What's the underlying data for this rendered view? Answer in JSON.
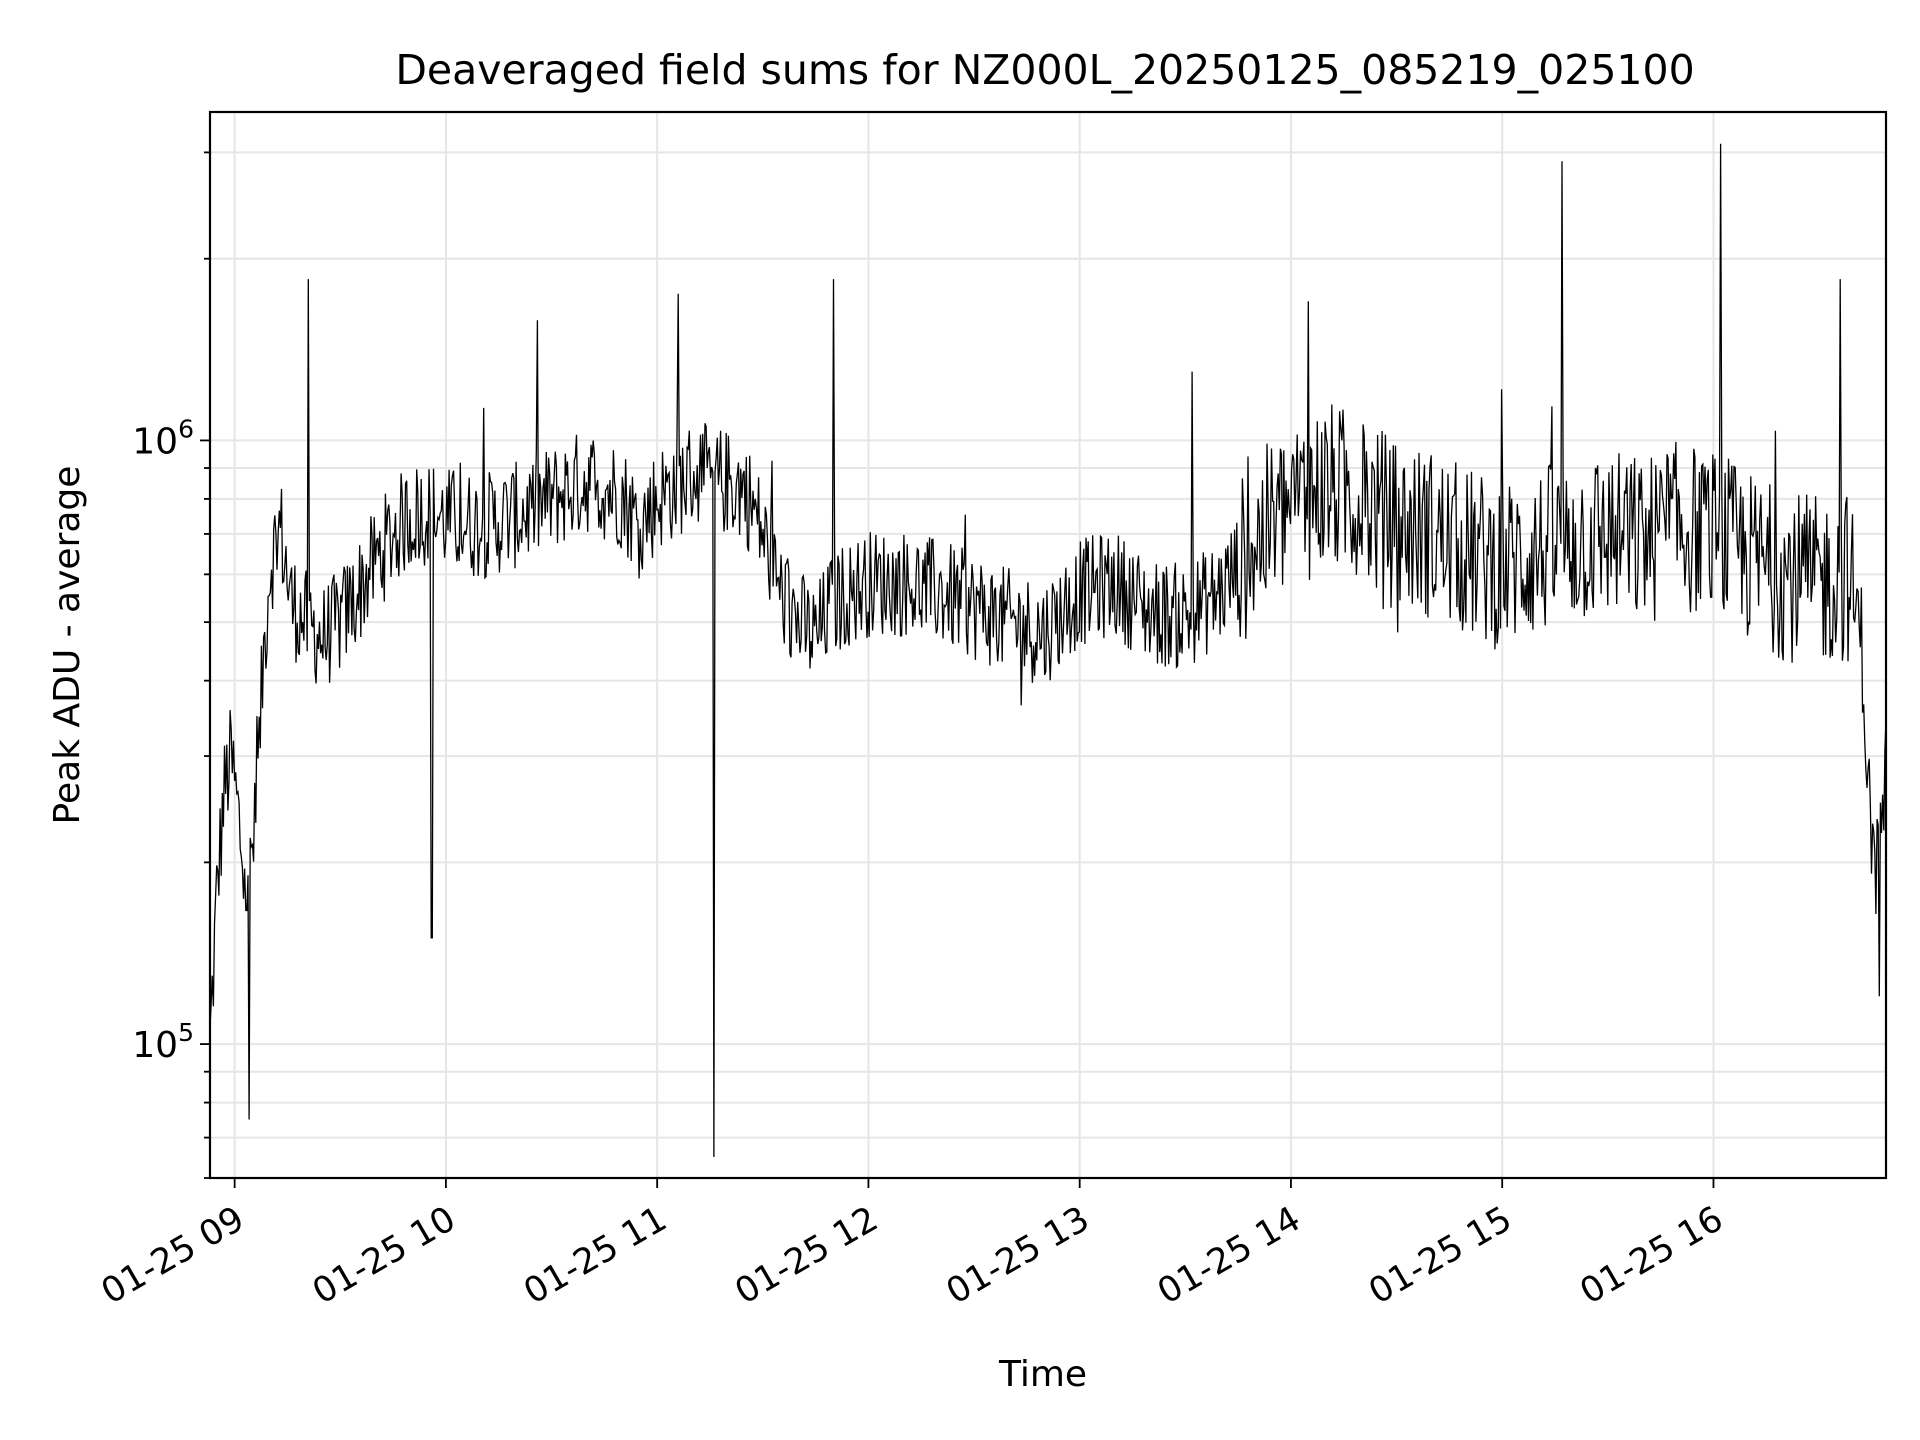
{
  "chart_data": {
    "type": "line",
    "title": "Deaveraged field sums for NZ000L_20250125_085219_025100",
    "xlabel": "Time",
    "ylabel": "Peak ADU - average",
    "yscale": "log",
    "grid": true,
    "ylim": [
      60000,
      3500000
    ],
    "xlim": [
      "2025-01-25 08:53",
      "2025-01-25 16:49"
    ],
    "x_ticks": [
      "01-25 09",
      "01-25 10",
      "01-25 11",
      "01-25 12",
      "01-25 13",
      "01-25 14",
      "01-25 15",
      "01-25 16"
    ],
    "x_tick_times": [
      "2025-01-25 09:00",
      "2025-01-25 10:00",
      "2025-01-25 11:00",
      "2025-01-25 12:00",
      "2025-01-25 13:00",
      "2025-01-25 14:00",
      "2025-01-25 15:00",
      "2025-01-25 16:00"
    ],
    "y_ticks": [
      {
        "base": "10",
        "exp": "5",
        "value": 100000
      },
      {
        "base": "10",
        "exp": "6",
        "value": 1000000
      }
    ],
    "line_color": "#000000",
    "series": [
      {
        "points": [
          [
            "2025-01-25 08:53",
            100000
          ],
          [
            "2025-01-25 08:55",
            180000
          ],
          [
            "2025-01-25 08:57",
            260000
          ],
          [
            "2025-01-25 08:59",
            300000
          ],
          [
            "2025-01-25 09:01",
            240000
          ],
          [
            "2025-01-25 09:03",
            180000
          ],
          [
            "2025-01-25 09:06",
            230000
          ],
          [
            "2025-01-25 09:08",
            420000
          ],
          [
            "2025-01-25 09:10",
            620000
          ],
          [
            "2025-01-25 09:13",
            720000
          ],
          [
            "2025-01-25 09:16",
            540000
          ],
          [
            "2025-01-25 09:20",
            500000
          ],
          [
            "2025-01-25 09:25",
            470000
          ],
          [
            "2025-01-25 09:30",
            500000
          ],
          [
            "2025-01-25 09:35",
            560000
          ],
          [
            "2025-01-25 09:40",
            630000
          ],
          [
            "2025-01-25 09:45",
            700000
          ],
          [
            "2025-01-25 09:50",
            750000
          ],
          [
            "2025-01-25 09:55",
            760000
          ],
          [
            "2025-01-25 10:00",
            740000
          ],
          [
            "2025-01-25 10:10",
            720000
          ],
          [
            "2025-01-25 10:20",
            750000
          ],
          [
            "2025-01-25 10:30",
            800000
          ],
          [
            "2025-01-25 10:40",
            860000
          ],
          [
            "2025-01-25 10:50",
            810000
          ],
          [
            "2025-01-25 10:55",
            720000
          ],
          [
            "2025-01-25 11:00",
            800000
          ],
          [
            "2025-01-25 11:10",
            880000
          ],
          [
            "2025-01-25 11:20",
            850000
          ],
          [
            "2025-01-25 11:25",
            830000
          ],
          [
            "2025-01-25 11:30",
            700000
          ],
          [
            "2025-01-25 11:35",
            560000
          ],
          [
            "2025-01-25 11:40",
            500000
          ],
          [
            "2025-01-25 11:45",
            470000
          ],
          [
            "2025-01-25 11:50",
            540000
          ],
          [
            "2025-01-25 12:00",
            580000
          ],
          [
            "2025-01-25 12:10",
            580000
          ],
          [
            "2025-01-25 12:20",
            560000
          ],
          [
            "2025-01-25 12:30",
            530000
          ],
          [
            "2025-01-25 12:40",
            500000
          ],
          [
            "2025-01-25 12:50",
            480000
          ],
          [
            "2025-01-25 13:00",
            560000
          ],
          [
            "2025-01-25 13:10",
            580000
          ],
          [
            "2025-01-25 13:20",
            520000
          ],
          [
            "2025-01-25 13:30",
            510000
          ],
          [
            "2025-01-25 13:40",
            560000
          ],
          [
            "2025-01-25 13:50",
            680000
          ],
          [
            "2025-01-25 14:00",
            780000
          ],
          [
            "2025-01-25 14:10",
            840000
          ],
          [
            "2025-01-25 14:20",
            800000
          ],
          [
            "2025-01-25 14:30",
            720000
          ],
          [
            "2025-01-25 14:40",
            700000
          ],
          [
            "2025-01-25 14:50",
            650000
          ],
          [
            "2025-01-25 15:00",
            620000
          ],
          [
            "2025-01-25 15:10",
            650000
          ],
          [
            "2025-01-25 15:20",
            680000
          ],
          [
            "2025-01-25 15:30",
            700000
          ],
          [
            "2025-01-25 15:40",
            680000
          ],
          [
            "2025-01-25 15:50",
            720000
          ],
          [
            "2025-01-25 16:00",
            700000
          ],
          [
            "2025-01-25 16:10",
            640000
          ],
          [
            "2025-01-25 16:20",
            600000
          ],
          [
            "2025-01-25 16:30",
            580000
          ],
          [
            "2025-01-25 16:38",
            600000
          ],
          [
            "2025-01-25 16:42",
            480000
          ],
          [
            "2025-01-25 16:44",
            260000
          ],
          [
            "2025-01-25 16:46",
            190000
          ],
          [
            "2025-01-25 16:48",
            230000
          ],
          [
            "2025-01-25 16:49",
            300000
          ]
        ],
        "spikes": [
          [
            "2025-01-25 09:04",
            75000
          ],
          [
            "2025-01-25 09:21",
            1850000
          ],
          [
            "2025-01-25 09:56",
            150000
          ],
          [
            "2025-01-25 11:06",
            1750000
          ],
          [
            "2025-01-25 11:16",
            65000
          ],
          [
            "2025-01-25 11:50",
            1850000
          ],
          [
            "2025-01-25 13:32",
            1300000
          ],
          [
            "2025-01-25 14:05",
            1700000
          ],
          [
            "2025-01-25 15:17",
            2900000
          ],
          [
            "2025-01-25 16:02",
            3100000
          ],
          [
            "2025-01-25 16:36",
            1850000
          ],
          [
            "2025-01-25 16:47",
            120000
          ]
        ],
        "noise_amplitude_log10": 0.09
      }
    ]
  }
}
